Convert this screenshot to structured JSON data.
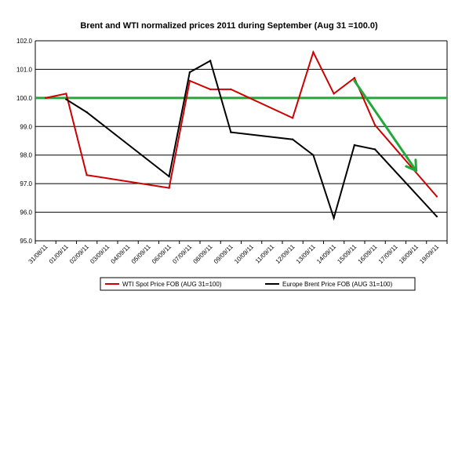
{
  "chart_data": {
    "type": "line",
    "title": "Brent and WTI normalized prices 2011 during   September (Aug 31 =100.0)",
    "xlabel": "",
    "ylabel": "",
    "ylim": [
      95.0,
      102.0
    ],
    "y_ticks": [
      "95.0",
      "96.0",
      "97.0",
      "98.0",
      "99.0",
      "100.0",
      "101.0",
      "102.0"
    ],
    "grid": true,
    "legend_position": "bottom",
    "categories": [
      "31/08/11",
      "01/09/11",
      "02/09/11",
      "03/09/11",
      "04/09/11",
      "05/09/11",
      "06/09/11",
      "07/09/11",
      "08/09/11",
      "09/09/11",
      "10/09/11",
      "11/09/11",
      "12/09/11",
      "13/09/11",
      "14/09/11",
      "15/09/11",
      "16/09/11",
      "17/09/11",
      "18/09/11",
      "19/09/11"
    ],
    "series": [
      {
        "name": "WTI Spot Price FOB (AUG 31=100)",
        "color": "#cc0000",
        "x": [
          "31/08/11",
          "01/09/11",
          "02/09/11",
          "06/09/11",
          "07/09/11",
          "08/09/11",
          "09/09/11",
          "12/09/11",
          "13/09/11",
          "14/09/11",
          "15/09/11",
          "16/09/11",
          "19/09/11"
        ],
        "values": [
          100.0,
          100.15,
          97.3,
          96.85,
          100.6,
          100.3,
          100.3,
          99.3,
          101.6,
          100.15,
          100.7,
          99.05,
          96.55
        ]
      },
      {
        "name": "Europe Brent Price FOB (AUG 31=100)",
        "color": "#000000",
        "x": [
          "01/09/11",
          "02/09/11",
          "06/09/11",
          "07/09/11",
          "08/09/11",
          "09/09/11",
          "12/09/11",
          "13/09/11",
          "14/09/11",
          "15/09/11",
          "16/09/11",
          "19/09/11"
        ],
        "values": [
          99.95,
          99.5,
          97.25,
          100.9,
          101.3,
          98.8,
          98.55,
          98.0,
          95.8,
          98.35,
          98.2,
          95.85
        ]
      }
    ],
    "reference_line": {
      "value": 100.0,
      "color": "#22a83a"
    },
    "trend_arrow": {
      "from": {
        "x": "15/09/11",
        "y": 100.6
      },
      "to": {
        "x": "18/09/11",
        "y": 97.45
      },
      "color": "#22a83a"
    }
  }
}
